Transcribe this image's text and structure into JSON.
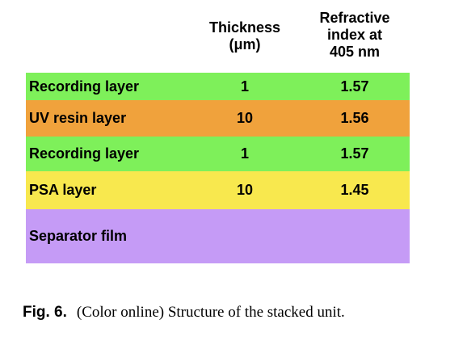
{
  "table": {
    "headers": {
      "thickness": [
        "Thickness",
        "(μm)"
      ],
      "refractive": [
        "Refractive",
        "index at",
        "405 nm"
      ]
    },
    "rows": [
      {
        "name": "Recording layer",
        "thickness": "1",
        "refractive": "1.57",
        "color": "#7ef05a"
      },
      {
        "name": "UV resin layer",
        "thickness": "10",
        "refractive": "1.56",
        "color": "#f0a23c"
      },
      {
        "name": "Recording layer",
        "thickness": "1",
        "refractive": "1.57",
        "color": "#7ef05a"
      },
      {
        "name": "PSA layer",
        "thickness": "10",
        "refractive": "1.45",
        "color": "#f8e84e"
      },
      {
        "name": "Separator film",
        "thickness": "",
        "refractive": "",
        "color": "#c59bf6"
      }
    ]
  },
  "caption": {
    "label": "Fig. 6.",
    "text": "(Color online) Structure of the stacked unit."
  }
}
